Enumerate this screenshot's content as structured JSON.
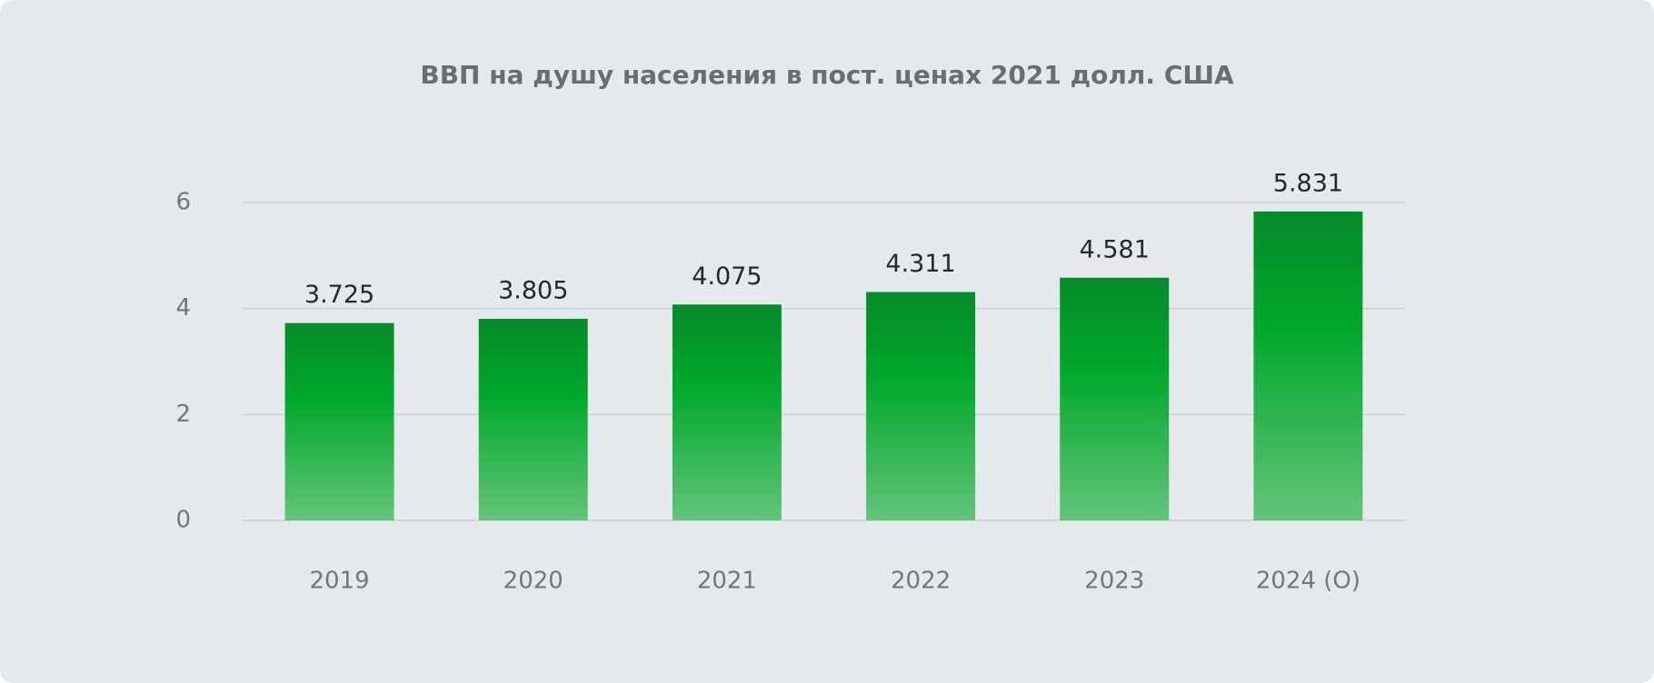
{
  "chart_data": {
    "type": "bar",
    "title": "ВВП на душу населения в пост. ценах 2021 долл. США",
    "categories": [
      "2019",
      "2020",
      "2021",
      "2022",
      "2023",
      "2024 (О)"
    ],
    "values": [
      3.725,
      3.805,
      4.075,
      4.311,
      4.581,
      5.831
    ],
    "color": "#00a82b",
    "ylim": [
      0,
      6
    ],
    "yticks": [
      0,
      2,
      4,
      6
    ],
    "grid": true
  }
}
